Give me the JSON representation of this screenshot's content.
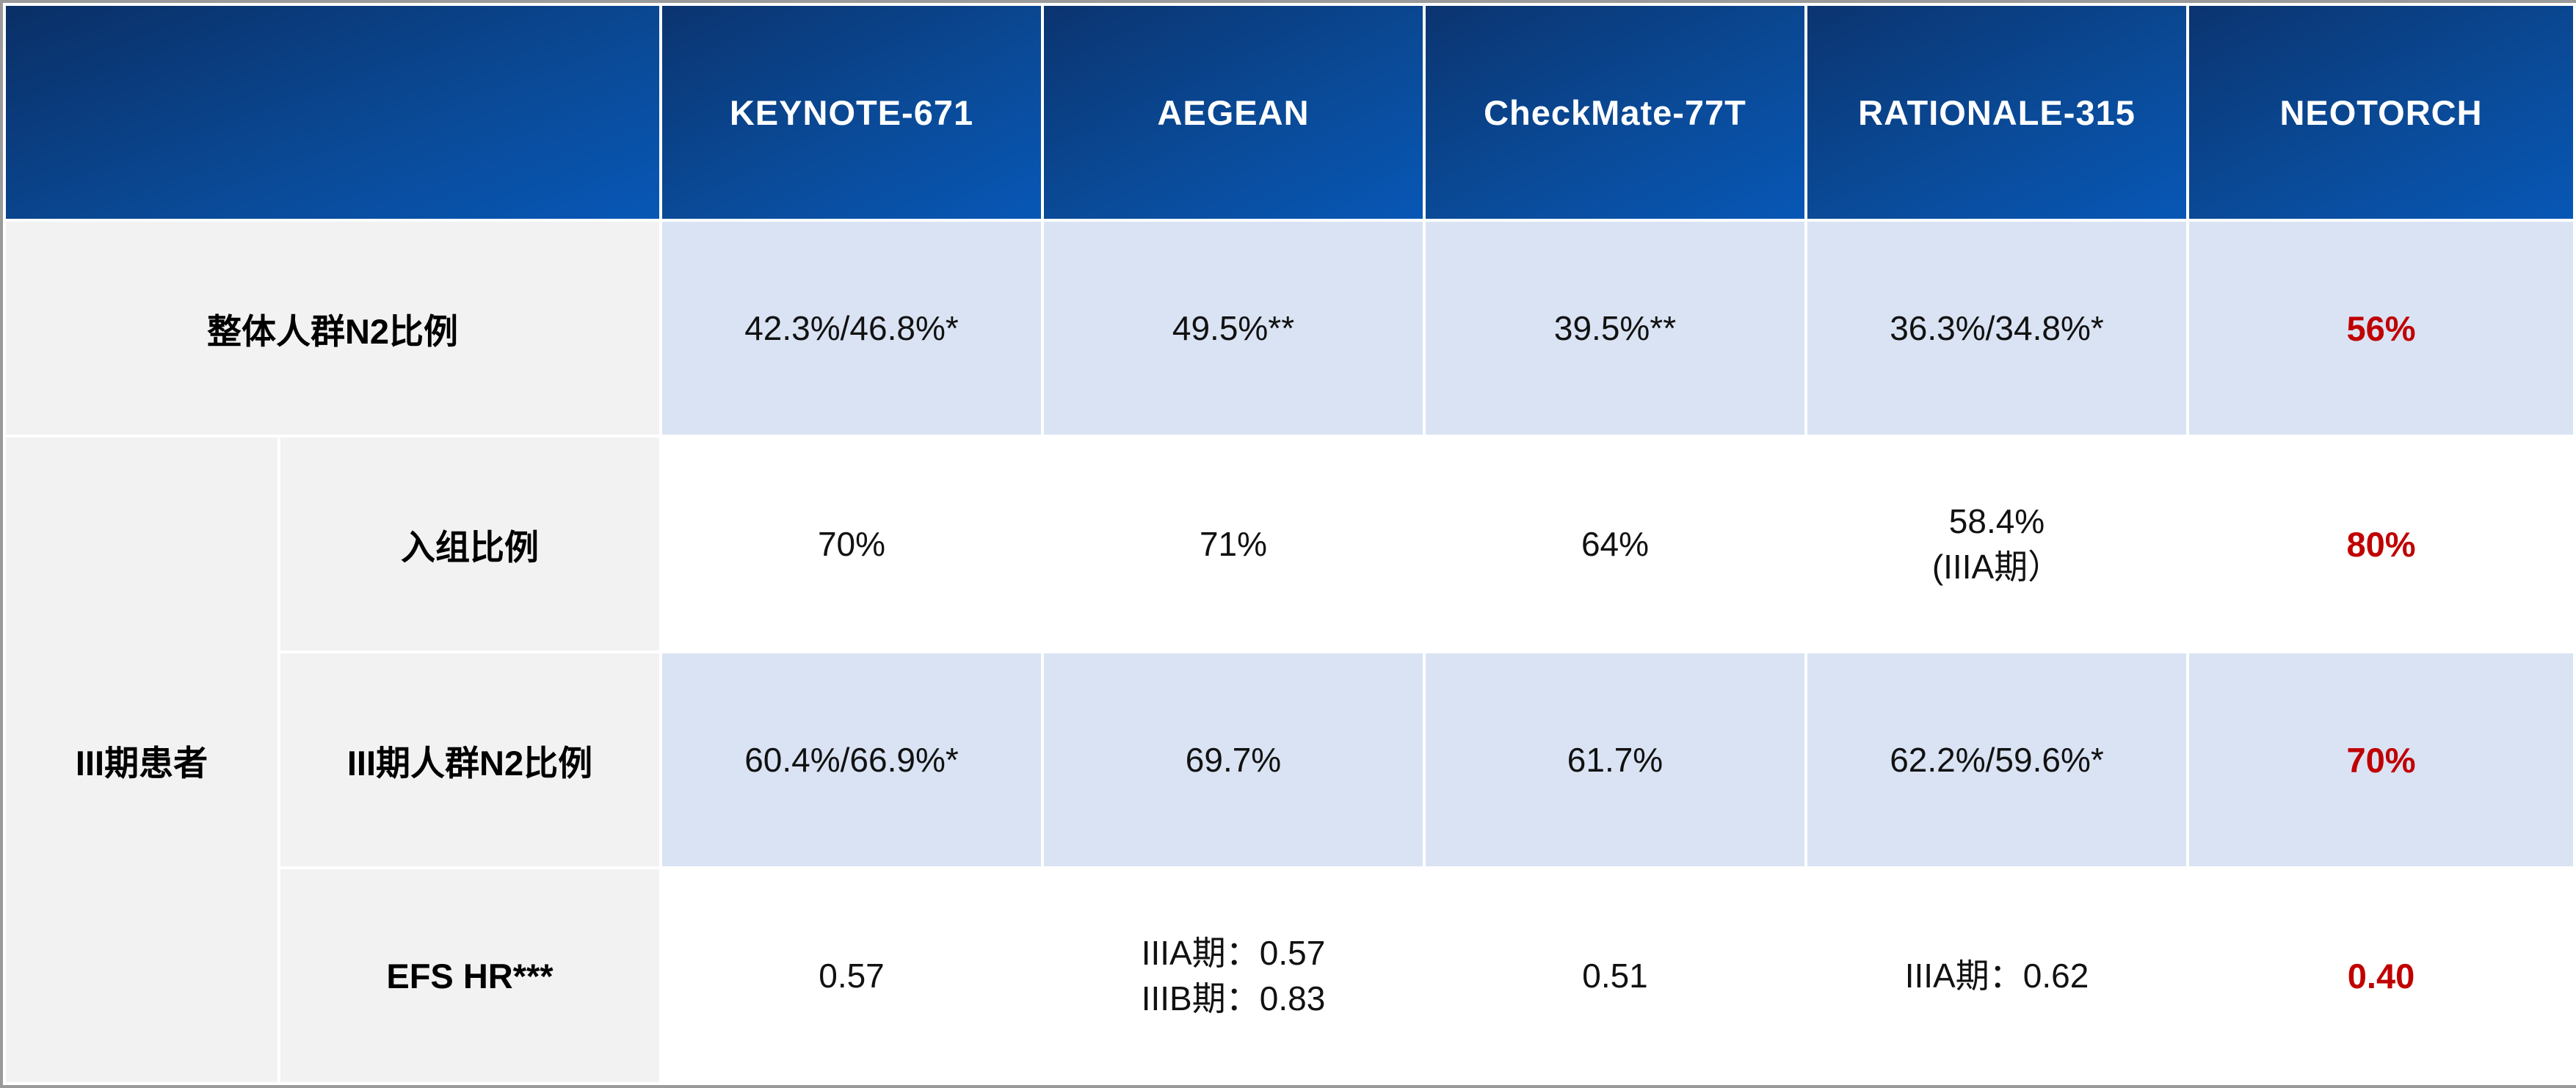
{
  "columns": [
    "KEYNOTE-671",
    "AEGEAN",
    "CheckMate-77T",
    "RATIONALE-315",
    "NEOTORCH"
  ],
  "overall": {
    "label": "整体人群N2比例",
    "values": [
      "42.3%/46.8%*",
      "49.5%**",
      "39.5%**",
      "36.3%/34.8%*",
      "56%"
    ]
  },
  "stage3": {
    "group_label": "III期患者",
    "enrollment": {
      "label": "入组比例",
      "values": [
        "70%",
        "71%",
        "64%",
        "58.4%",
        "80%"
      ],
      "rationale_note": "(IIIA期）"
    },
    "n2": {
      "label": "III期人群N2比例",
      "values": [
        "60.4%/66.9%*",
        "69.7%",
        "61.7%",
        "62.2%/59.6%*",
        "70%"
      ]
    },
    "efs": {
      "label": "EFS HR***",
      "keynote": "0.57",
      "aegean_line1": "IIIA期：0.57",
      "aegean_line2": "IIIB期：0.83",
      "checkmate": "0.51",
      "rationale": "IIIA期：0.62",
      "neotorch": "0.40"
    }
  },
  "colors": {
    "header_dark": "#0b3470",
    "header_light": "#0757b6",
    "label_bg": "#f2f2f2",
    "shade_bg": "#dae3f3",
    "highlight": "#c00000"
  }
}
